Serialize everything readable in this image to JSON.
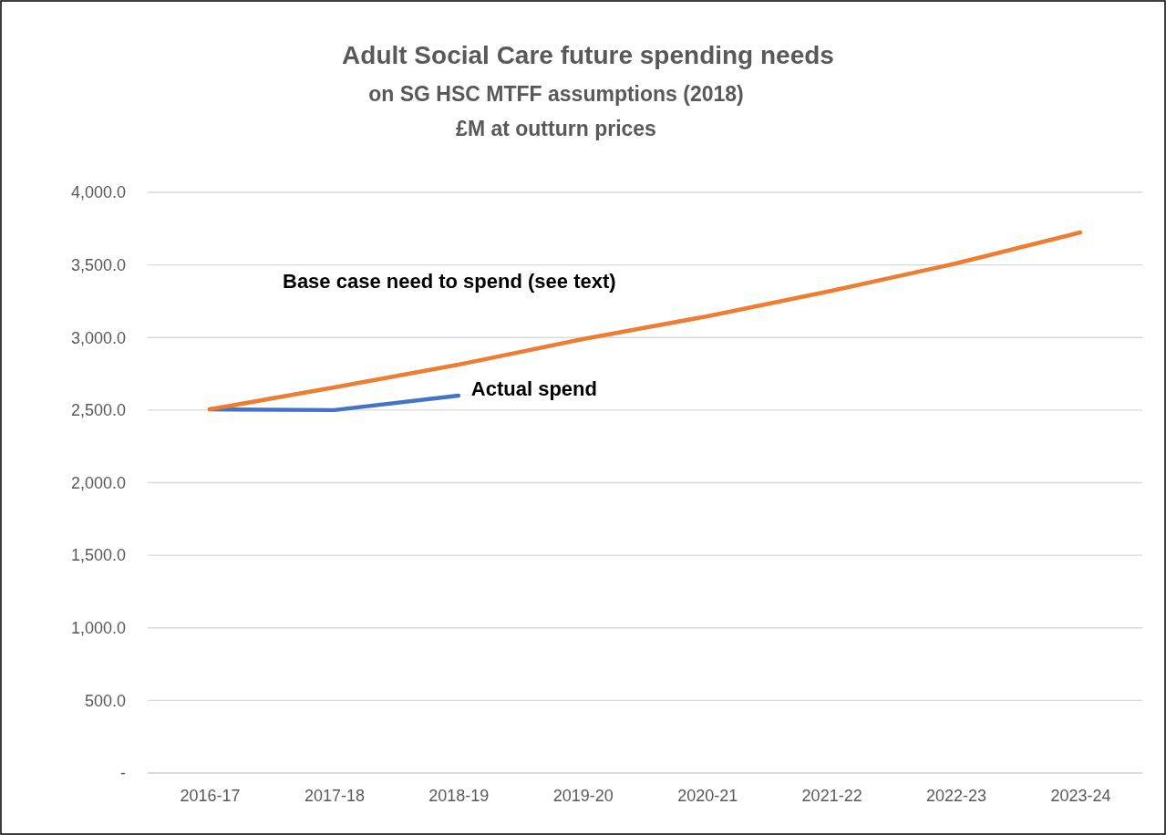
{
  "chart_data": {
    "type": "line",
    "title": "Adult Social Care future spending needs",
    "subtitle": "on SG HSC MTFF assumptions (2018)\n£M at outturn prices",
    "categories": [
      "2016-17",
      "2017-18",
      "2018-19",
      "2019-20",
      "2020-21",
      "2021-22",
      "2022-23",
      "2023-24"
    ],
    "series": [
      {
        "name": "Actual spend",
        "color": "#4472c4",
        "values": [
          2505,
          2500,
          2600,
          null,
          null,
          null,
          null,
          null
        ]
      },
      {
        "name": "Base case need to spend (see text)",
        "color": "#ed7d31",
        "values": [
          2505,
          2656,
          2813,
          2989,
          3146,
          3322,
          3510,
          3724
        ]
      }
    ],
    "ylim": [
      0,
      4000
    ],
    "yticks": [
      {
        "value": 0,
        "label": "-"
      },
      {
        "value": 500,
        "label": "500.0"
      },
      {
        "value": 1000,
        "label": "1,000.0"
      },
      {
        "value": 1500,
        "label": "1,500.0"
      },
      {
        "value": 2000,
        "label": "2,000.0"
      },
      {
        "value": 2500,
        "label": "2,500.0"
      },
      {
        "value": 3000,
        "label": "3,000.0"
      },
      {
        "value": 3500,
        "label": "3,500.0"
      },
      {
        "value": 4000,
        "label": "4,000.0"
      }
    ],
    "grid": "y",
    "legend": false,
    "marker": "none",
    "line_style": "solid"
  }
}
